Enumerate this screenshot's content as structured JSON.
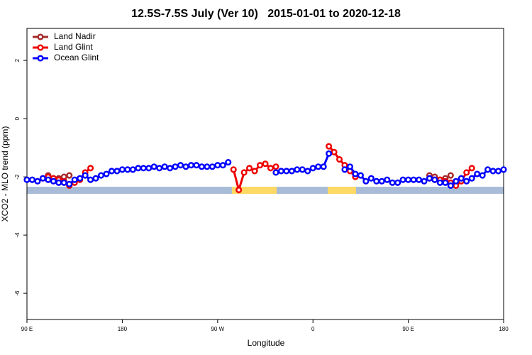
{
  "chart_data": {
    "type": "line",
    "title": "12.5S-7.5S July (Ver 10)   2015-01-01 to 2020-12-18",
    "xlabel": "Longitude",
    "ylabel": "XCO2 - MLO trend (ppm)",
    "x": [
      90,
      95,
      100,
      105,
      110,
      115,
      120,
      125,
      130,
      135,
      140,
      145,
      150,
      155,
      160,
      165,
      170,
      175,
      180,
      185,
      190,
      195,
      200,
      205,
      210,
      215,
      220,
      225,
      230,
      235,
      240,
      245,
      250,
      255,
      260,
      265,
      270,
      275,
      280,
      285,
      290,
      295,
      300,
      305,
      310,
      315,
      320,
      325,
      330,
      335,
      340,
      345,
      350,
      355,
      360,
      365,
      370,
      375,
      380,
      385,
      390,
      395,
      400,
      405,
      410,
      415,
      420,
      425,
      430,
      435,
      440,
      445,
      450,
      455,
      460,
      465,
      470,
      475,
      480,
      485,
      490,
      495,
      500,
      505,
      510,
      515,
      520,
      525,
      530,
      535,
      540
    ],
    "series": [
      {
        "name": "Land Nadir",
        "color": "#a52a2a",
        "values": [
          null,
          null,
          null,
          null,
          -1.95,
          -2.05,
          -2.05,
          -2.0,
          -1.95,
          null,
          null,
          null,
          null,
          null,
          null,
          null,
          null,
          null,
          null,
          null,
          null,
          null,
          null,
          null,
          null,
          null,
          null,
          null,
          null,
          null,
          null,
          null,
          null,
          null,
          null,
          null,
          null,
          null,
          null,
          null,
          null,
          null,
          null,
          null,
          null,
          null,
          null,
          null,
          null,
          null,
          null,
          null,
          null,
          null,
          null,
          null,
          null,
          null,
          null,
          null,
          null,
          null,
          null,
          null,
          null,
          null,
          null,
          null,
          null,
          null,
          null,
          null,
          null,
          null,
          null,
          null,
          -1.95,
          -2.0,
          -2.1,
          -2.05,
          -1.95,
          null,
          null,
          null,
          null,
          null,
          null,
          null,
          null,
          null,
          null
        ]
      },
      {
        "name": "Land Glint",
        "color": "#ee0000",
        "values": [
          null,
          null,
          null,
          -2.05,
          -2.0,
          -2.05,
          -2.1,
          -2.15,
          -2.3,
          -2.2,
          -2.1,
          -1.85,
          -1.7,
          null,
          null,
          null,
          null,
          null,
          null,
          null,
          null,
          null,
          null,
          null,
          null,
          null,
          null,
          null,
          null,
          null,
          null,
          null,
          null,
          null,
          null,
          null,
          null,
          null,
          null,
          -1.75,
          -2.45,
          -1.85,
          -1.7,
          -1.8,
          -1.6,
          -1.55,
          -1.7,
          -1.65,
          null,
          null,
          null,
          null,
          null,
          null,
          null,
          null,
          null,
          -0.95,
          -1.15,
          -1.4,
          -1.6,
          -1.8,
          -2.0,
          null,
          null,
          null,
          null,
          null,
          null,
          null,
          null,
          null,
          null,
          null,
          null,
          null,
          -2.05,
          -2.1,
          -2.1,
          -2.15,
          -2.2,
          -2.3,
          -2.15,
          -1.85,
          -1.7,
          null,
          null,
          null,
          null,
          null,
          null
        ]
      },
      {
        "name": "Ocean Glint",
        "color": "#0000ff",
        "values": [
          -2.1,
          -2.1,
          -2.15,
          -2.05,
          -2.1,
          -2.15,
          -2.2,
          -2.2,
          -2.25,
          -2.1,
          -2.05,
          -1.95,
          -2.1,
          -2.05,
          -1.95,
          -1.9,
          -1.8,
          -1.8,
          -1.75,
          -1.75,
          -1.75,
          -1.7,
          -1.7,
          -1.7,
          -1.65,
          -1.7,
          -1.65,
          -1.7,
          -1.65,
          -1.6,
          -1.65,
          -1.6,
          -1.6,
          -1.65,
          -1.65,
          -1.65,
          -1.6,
          -1.6,
          -1.5,
          null,
          null,
          null,
          null,
          null,
          null,
          null,
          null,
          -1.85,
          -1.8,
          -1.8,
          -1.8,
          -1.75,
          -1.75,
          -1.8,
          -1.7,
          -1.65,
          -1.65,
          -1.2,
          null,
          null,
          -1.75,
          -1.65,
          -1.9,
          -1.95,
          -2.15,
          -2.05,
          -2.15,
          -2.15,
          -2.1,
          -2.2,
          -2.2,
          -2.1,
          -2.1,
          -2.1,
          -2.1,
          -2.15,
          -2.05,
          -2.1,
          -2.2,
          -2.2,
          -2.3,
          -2.15,
          -2.05,
          -2.15,
          -2.05,
          -1.9,
          -1.95,
          -1.75,
          -1.8,
          -1.8,
          -1.75
        ]
      }
    ],
    "xlim": [
      90,
      540
    ],
    "xticks": [
      {
        "value": 90,
        "label": "90 E"
      },
      180,
      {
        "value": 270,
        "label": "90 W"
      },
      {
        "value": 360,
        "label": "0"
      },
      {
        "value": 450,
        "label": "90 E"
      },
      {
        "value": 540,
        "label": "180"
      }
    ],
    "ylim": [
      -6.9,
      3.1
    ],
    "yticks": [
      -6,
      -4,
      -2,
      0,
      2
    ],
    "legend": "top-left"
  }
}
